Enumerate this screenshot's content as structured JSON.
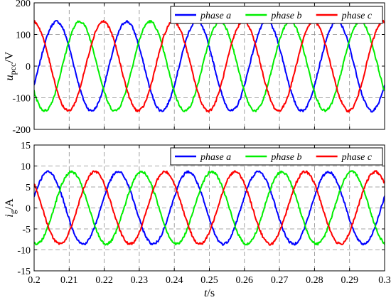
{
  "chart_data": [
    {
      "type": "line",
      "ylabel": {
        "main": "u",
        "sub": "pcc",
        "unit": "/V"
      },
      "xlim": [
        0.2,
        0.3
      ],
      "ylim": [
        -200,
        200
      ],
      "yticks": [
        -200,
        -100,
        0,
        100,
        200
      ],
      "xticks": [
        0.2,
        0.21,
        0.22,
        0.23,
        0.24,
        0.25,
        0.26,
        0.27,
        0.28,
        0.29,
        0.3
      ],
      "show_x_tick_labels": false,
      "grid": true,
      "legend_position": "top-right",
      "frequency_hz": 50,
      "noise_amplitude": 4,
      "series": [
        {
          "name": "phase a",
          "color": "#0000ff",
          "amplitude": 141,
          "phase_deg": -25
        },
        {
          "name": "phase b",
          "color": "#00ee00",
          "amplitude": 141,
          "phase_deg": -145
        },
        {
          "name": "phase c",
          "color": "#ff0000",
          "amplitude": 141,
          "phase_deg": 95
        }
      ]
    },
    {
      "type": "line",
      "ylabel": {
        "main": "i",
        "sub": "g",
        "unit": "/A"
      },
      "xlabel": {
        "main": "t",
        "unit": "/s"
      },
      "xlim": [
        0.2,
        0.3
      ],
      "ylim": [
        -15,
        15
      ],
      "yticks": [
        -15,
        -10,
        -5,
        0,
        5,
        10,
        15
      ],
      "xticks": [
        0.2,
        0.21,
        0.22,
        0.23,
        0.24,
        0.25,
        0.26,
        0.27,
        0.28,
        0.29,
        0.3
      ],
      "xtick_labels": [
        "0.2",
        "0.21",
        "0.22",
        "0.23",
        "0.24",
        "0.25",
        "0.26",
        "0.27",
        "0.28",
        "0.29",
        "0.3"
      ],
      "show_x_tick_labels": true,
      "grid": true,
      "legend_position": "top-right",
      "frequency_hz": 50,
      "noise_amplitude": 0.3,
      "series": [
        {
          "name": "phase a",
          "color": "#0000ff",
          "amplitude": 8.6,
          "phase_deg": 18
        },
        {
          "name": "phase b",
          "color": "#00ee00",
          "amplitude": 8.6,
          "phase_deg": -102
        },
        {
          "name": "phase c",
          "color": "#ff0000",
          "amplitude": 8.6,
          "phase_deg": 138
        }
      ]
    }
  ]
}
